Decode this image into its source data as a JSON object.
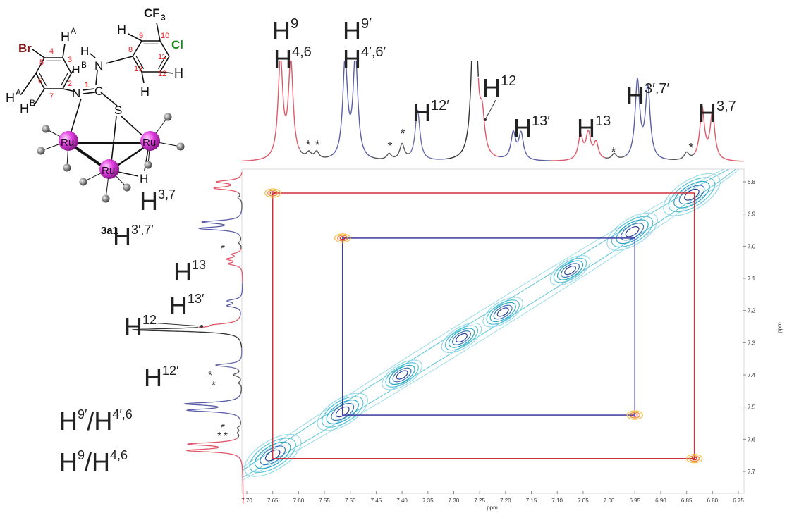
{
  "chart_data": {
    "type": "nmr2d",
    "xlabel": "ppm",
    "ylabel": "ppm",
    "xlim": [
      7.7,
      6.75
    ],
    "ylim": [
      6.8,
      7.7
    ],
    "xticks": [
      {
        "value": 7.7,
        "label": "7.70"
      },
      7.65,
      {
        "value": 7.6,
        "label": "7.60"
      },
      7.55,
      {
        "value": 7.5,
        "label": "7.50"
      },
      7.45,
      {
        "value": 7.4,
        "label": "7.40"
      },
      7.35,
      {
        "value": 7.3,
        "label": "7.30"
      },
      7.25,
      {
        "value": 7.2,
        "label": "7.20"
      },
      7.15,
      {
        "value": 7.1,
        "label": "7.10"
      },
      7.05,
      {
        "value": 7,
        "label": "7.00"
      },
      6.95,
      {
        "value": 6.9,
        "label": "6.90"
      },
      6.85,
      {
        "value": 6.8,
        "label": "6.80"
      },
      6.75
    ],
    "yticks": [
      6.8,
      6.9,
      {
        "value": 7,
        "label": "7.0"
      },
      7.1,
      7.2,
      7.3,
      7.4,
      7.5,
      7.6,
      7.7
    ],
    "peaks": [
      {
        "ppm": 7.635,
        "height": 0.83,
        "color": "#e0596a"
      },
      {
        "ppm": 7.615,
        "height": 0.81,
        "color": "#e0596a"
      },
      {
        "ppm": 7.58,
        "height": 0.05,
        "color": "#555555"
      },
      {
        "ppm": 7.565,
        "height": 0.06,
        "color": "#555555"
      },
      {
        "ppm": 7.51,
        "height": 0.82,
        "color": "#5a5fa8"
      },
      {
        "ppm": 7.49,
        "height": 0.86,
        "color": "#5a5fa8"
      },
      {
        "ppm": 7.425,
        "height": 0.05,
        "color": "#555555"
      },
      {
        "ppm": 7.4,
        "height": 0.13,
        "color": "#555555"
      },
      {
        "ppm": 7.37,
        "height": 0.42,
        "color": "#6b6fa8"
      },
      {
        "ppm": 7.26,
        "height": 1.7,
        "color": "#333333"
      },
      {
        "ppm": 7.245,
        "height": 0.3,
        "color": "#e0596a"
      },
      {
        "ppm": 7.185,
        "height": 0.22,
        "color": "#5a5fa8"
      },
      {
        "ppm": 7.17,
        "height": 0.22,
        "color": "#5a5fa8"
      },
      {
        "ppm": 7.055,
        "height": 0.2,
        "color": "#e0596a"
      },
      {
        "ppm": 7.04,
        "height": 0.22,
        "color": "#e0596a"
      },
      {
        "ppm": 7.025,
        "height": 0.14,
        "color": "#e0596a"
      },
      {
        "ppm": 6.99,
        "height": 0.05,
        "color": "#555555"
      },
      {
        "ppm": 6.945,
        "height": 0.65,
        "color": "#5a5fa8"
      },
      {
        "ppm": 6.925,
        "height": 0.6,
        "color": "#5a5fa8"
      },
      {
        "ppm": 6.85,
        "height": 0.06,
        "color": "#555555"
      },
      {
        "ppm": 6.82,
        "height": 0.43,
        "color": "#e0596a"
      },
      {
        "ppm": 6.8,
        "height": 0.39,
        "color": "#e0596a"
      }
    ],
    "diagonal_peaks": [
      7.65,
      7.515,
      7.4,
      7.285,
      7.205,
      7.075,
      6.955,
      6.84
    ],
    "exchange_pairs": [
      {
        "color": "#d0313d",
        "peaks": [
          [
            7.65,
            6.835
          ],
          [
            6.835,
            7.66
          ]
        ]
      },
      {
        "color": "#3a3aa0",
        "peaks": [
          [
            7.515,
            6.975
          ],
          [
            6.95,
            7.525
          ]
        ]
      }
    ],
    "top_labels": [
      [
        "H",
        "9"
      ],
      [
        "H",
        "4,6"
      ],
      [
        "H",
        "9′"
      ],
      [
        "H",
        "4′,6′"
      ],
      [
        "H",
        "12′"
      ],
      [
        "H",
        "12"
      ],
      [
        "H",
        "13′"
      ],
      [
        "H",
        "13"
      ],
      [
        "H",
        "3′,7′"
      ],
      [
        "H",
        "3,7"
      ]
    ],
    "left_labels": [
      [
        "H",
        "3,7"
      ],
      [
        "H",
        "3′,7′"
      ],
      [
        "H",
        "13"
      ],
      [
        "H",
        "13′"
      ],
      [
        "H",
        "12"
      ],
      [
        "H",
        "12′"
      ],
      [
        "H",
        "9′",
        "/H",
        "4′,6"
      ],
      [
        "H",
        "9",
        "/H",
        "4,6"
      ]
    ],
    "top_asterisks": [
      "*",
      "*",
      "*",
      "*",
      "*",
      "*"
    ],
    "left_asterisks": [
      "*",
      "*",
      "*",
      "*",
      "*",
      "*"
    ]
  },
  "structure": {
    "atoms": [
      "Br",
      "H",
      "A",
      "H",
      "A",
      "H",
      "B",
      "H",
      "B",
      "N",
      "C",
      "N",
      "H",
      "S",
      "H",
      "CF",
      "3",
      "Cl",
      "H",
      "H",
      "Ru",
      "Ru",
      "Ru",
      "H"
    ],
    "numbers": [
      "4",
      "3",
      "5",
      "6",
      "7",
      "2",
      "1",
      "9",
      "10",
      "11",
      "8",
      "13",
      "12"
    ],
    "compound": "3a1"
  }
}
